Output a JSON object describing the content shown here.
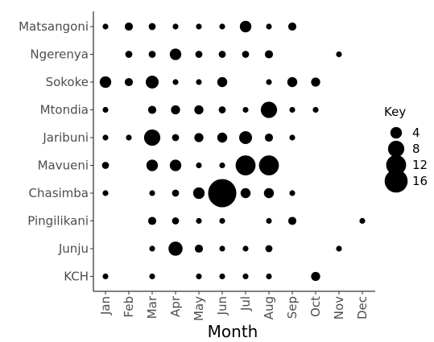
{
  "chart_data": {
    "type": "scatter",
    "x_label": "Month",
    "y_label": "",
    "x_categories": [
      "Jan",
      "Feb",
      "Mar",
      "Apr",
      "May",
      "Jun",
      "Jul",
      "Aug",
      "Sep",
      "Oct",
      "Nov",
      "Dec"
    ],
    "y_categories": [
      "Matsangoni",
      "Ngerenya",
      "Sokoke",
      "Mtondia",
      "Jaribuni",
      "Mavueni",
      "Chasimba",
      "Pingilikani",
      "Junju",
      "KCH"
    ],
    "legend": {
      "title": "Key",
      "entries": [
        4,
        8,
        12,
        16
      ],
      "position": "right"
    },
    "grid": false,
    "points": [
      {
        "site": "Matsangoni",
        "month": "Jan",
        "value": 1
      },
      {
        "site": "Matsangoni",
        "month": "Feb",
        "value": 2
      },
      {
        "site": "Matsangoni",
        "month": "Mar",
        "value": 1.5
      },
      {
        "site": "Matsangoni",
        "month": "Apr",
        "value": 1
      },
      {
        "site": "Matsangoni",
        "month": "May",
        "value": 1
      },
      {
        "site": "Matsangoni",
        "month": "Jun",
        "value": 1
      },
      {
        "site": "Matsangoni",
        "month": "Jul",
        "value": 4
      },
      {
        "site": "Matsangoni",
        "month": "Aug",
        "value": 1
      },
      {
        "site": "Matsangoni",
        "month": "Sep",
        "value": 2
      },
      {
        "site": "Ngerenya",
        "month": "Feb",
        "value": 1.5
      },
      {
        "site": "Ngerenya",
        "month": "Mar",
        "value": 1.5
      },
      {
        "site": "Ngerenya",
        "month": "Apr",
        "value": 4
      },
      {
        "site": "Ngerenya",
        "month": "May",
        "value": 1.5
      },
      {
        "site": "Ngerenya",
        "month": "Jun",
        "value": 1.5
      },
      {
        "site": "Ngerenya",
        "month": "Jul",
        "value": 1.5
      },
      {
        "site": "Ngerenya",
        "month": "Aug",
        "value": 2
      },
      {
        "site": "Ngerenya",
        "month": "Nov",
        "value": 1
      },
      {
        "site": "Sokoke",
        "month": "Jan",
        "value": 4
      },
      {
        "site": "Sokoke",
        "month": "Feb",
        "value": 2
      },
      {
        "site": "Sokoke",
        "month": "Mar",
        "value": 5
      },
      {
        "site": "Sokoke",
        "month": "Apr",
        "value": 1
      },
      {
        "site": "Sokoke",
        "month": "May",
        "value": 1
      },
      {
        "site": "Sokoke",
        "month": "Jun",
        "value": 3
      },
      {
        "site": "Sokoke",
        "month": "Aug",
        "value": 1
      },
      {
        "site": "Sokoke",
        "month": "Sep",
        "value": 3
      },
      {
        "site": "Sokoke",
        "month": "Oct",
        "value": 2.5
      },
      {
        "site": "Mtondia",
        "month": "Jan",
        "value": 1
      },
      {
        "site": "Mtondia",
        "month": "Mar",
        "value": 2
      },
      {
        "site": "Mtondia",
        "month": "Apr",
        "value": 2.5
      },
      {
        "site": "Mtondia",
        "month": "May",
        "value": 2.5
      },
      {
        "site": "Mtondia",
        "month": "Jun",
        "value": 1.5
      },
      {
        "site": "Mtondia",
        "month": "Jul",
        "value": 1
      },
      {
        "site": "Mtondia",
        "month": "Aug",
        "value": 8
      },
      {
        "site": "Mtondia",
        "month": "Sep",
        "value": 1
      },
      {
        "site": "Mtondia",
        "month": "Oct",
        "value": 1
      },
      {
        "site": "Jaribuni",
        "month": "Jan",
        "value": 1
      },
      {
        "site": "Jaribuni",
        "month": "Feb",
        "value": 1
      },
      {
        "site": "Jaribuni",
        "month": "Mar",
        "value": 8
      },
      {
        "site": "Jaribuni",
        "month": "Apr",
        "value": 1.5
      },
      {
        "site": "Jaribuni",
        "month": "May",
        "value": 2.5
      },
      {
        "site": "Jaribuni",
        "month": "Jun",
        "value": 3
      },
      {
        "site": "Jaribuni",
        "month": "Jul",
        "value": 5
      },
      {
        "site": "Jaribuni",
        "month": "Aug",
        "value": 2
      },
      {
        "site": "Jaribuni",
        "month": "Sep",
        "value": 1
      },
      {
        "site": "Mavueni",
        "month": "Jan",
        "value": 1.5
      },
      {
        "site": "Mavueni",
        "month": "Mar",
        "value": 4
      },
      {
        "site": "Mavueni",
        "month": "Apr",
        "value": 4
      },
      {
        "site": "Mavueni",
        "month": "May",
        "value": 1
      },
      {
        "site": "Mavueni",
        "month": "Jun",
        "value": 1
      },
      {
        "site": "Mavueni",
        "month": "Jul",
        "value": 12
      },
      {
        "site": "Mavueni",
        "month": "Aug",
        "value": 12
      },
      {
        "site": "Chasimba",
        "month": "Jan",
        "value": 1
      },
      {
        "site": "Chasimba",
        "month": "Mar",
        "value": 1
      },
      {
        "site": "Chasimba",
        "month": "Apr",
        "value": 1.5
      },
      {
        "site": "Chasimba",
        "month": "May",
        "value": 4
      },
      {
        "site": "Chasimba",
        "month": "Jun",
        "value": 24
      },
      {
        "site": "Chasimba",
        "month": "Jul",
        "value": 3
      },
      {
        "site": "Chasimba",
        "month": "Aug",
        "value": 3
      },
      {
        "site": "Chasimba",
        "month": "Sep",
        "value": 1
      },
      {
        "site": "Pingilikani",
        "month": "Mar",
        "value": 2
      },
      {
        "site": "Pingilikani",
        "month": "Apr",
        "value": 1.5
      },
      {
        "site": "Pingilikani",
        "month": "May",
        "value": 1
      },
      {
        "site": "Pingilikani",
        "month": "Jun",
        "value": 1
      },
      {
        "site": "Pingilikani",
        "month": "Aug",
        "value": 1
      },
      {
        "site": "Pingilikani",
        "month": "Sep",
        "value": 2
      },
      {
        "site": "Pingilikani",
        "month": "Dec",
        "value": 1
      },
      {
        "site": "Junju",
        "month": "Mar",
        "value": 1
      },
      {
        "site": "Junju",
        "month": "Apr",
        "value": 6
      },
      {
        "site": "Junju",
        "month": "May",
        "value": 2
      },
      {
        "site": "Junju",
        "month": "Jun",
        "value": 1
      },
      {
        "site": "Junju",
        "month": "Jul",
        "value": 1
      },
      {
        "site": "Junju",
        "month": "Aug",
        "value": 1.5
      },
      {
        "site": "Junju",
        "month": "Nov",
        "value": 1
      },
      {
        "site": "KCH",
        "month": "Jan",
        "value": 1
      },
      {
        "site": "KCH",
        "month": "Mar",
        "value": 1
      },
      {
        "site": "KCH",
        "month": "May",
        "value": 1
      },
      {
        "site": "KCH",
        "month": "Jun",
        "value": 1
      },
      {
        "site": "KCH",
        "month": "Jul",
        "value": 1
      },
      {
        "site": "KCH",
        "month": "Aug",
        "value": 1
      },
      {
        "site": "KCH",
        "month": "Oct",
        "value": 2.5
      }
    ]
  }
}
